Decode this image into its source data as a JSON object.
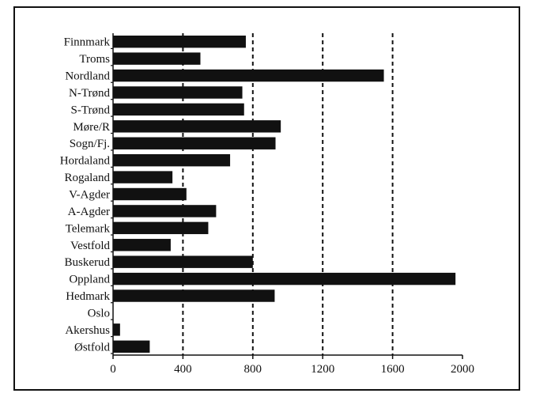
{
  "chart_data": {
    "type": "bar",
    "orientation": "horizontal",
    "categories": [
      "Finnmark",
      "Troms",
      "Nordland",
      "N-Trønd",
      "S-Trønd",
      "Møre/R",
      "Sogn/Fj.",
      "Hordaland",
      "Rogaland",
      "V-Agder",
      "A-Agder",
      "Telemark",
      "Vestfold",
      "Buskerud",
      "Oppland",
      "Hedmark",
      "Oslo",
      "Akershus",
      "Østfold"
    ],
    "values": [
      760,
      500,
      1550,
      740,
      750,
      960,
      930,
      670,
      340,
      420,
      590,
      545,
      330,
      800,
      1960,
      925,
      0,
      40,
      210
    ],
    "title": "",
    "xlabel": "",
    "ylabel": "",
    "xlim": [
      0,
      2000
    ],
    "xticks": [
      0,
      400,
      800,
      1200,
      1600,
      2000
    ],
    "gridlines": [
      400,
      800,
      1200,
      1600
    ],
    "grid_style": "vertical-dashed",
    "bar_color": "#111111",
    "legend": "none"
  }
}
